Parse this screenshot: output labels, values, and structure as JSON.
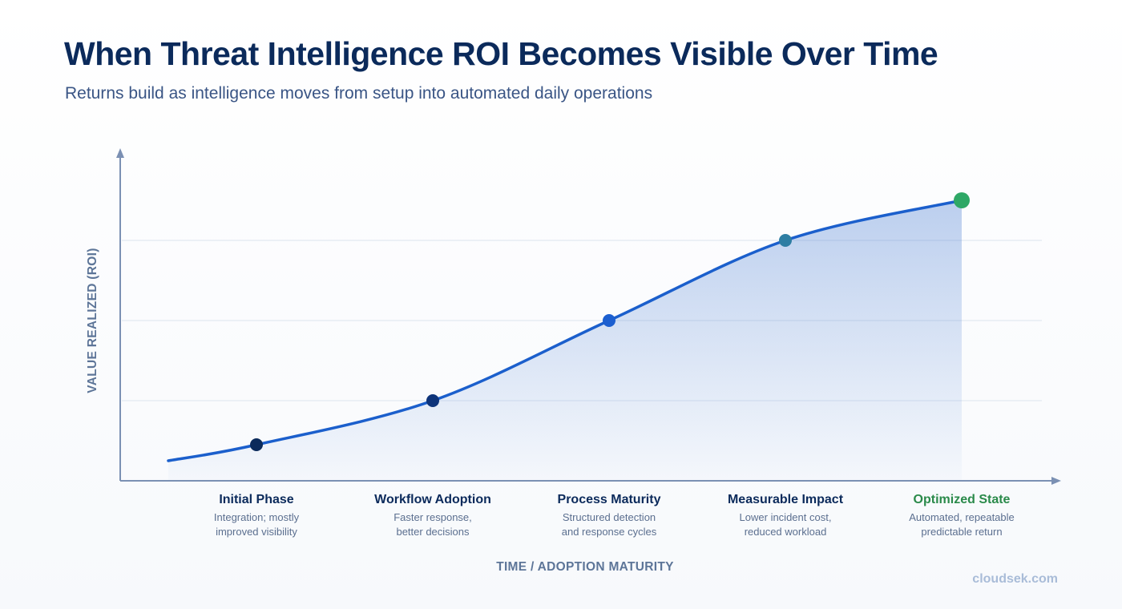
{
  "chart_data": {
    "type": "area",
    "title": "When Threat Intelligence ROI Becomes Visible Over Time",
    "subtitle": "Returns build as intelligence moves from setup into automated daily operations",
    "xlabel": "TIME / ADOPTION MATURITY",
    "ylabel": "VALUE REALIZED (ROI)",
    "grid": true,
    "categories": [
      "Initial Phase",
      "Workflow Adoption",
      "Process Maturity",
      "Measurable Impact",
      "Optimized State"
    ],
    "descriptions": [
      [
        "Integration; mostly",
        "improved visibility"
      ],
      [
        "Faster response,",
        "better decisions"
      ],
      [
        "Structured detection",
        "and response cycles"
      ],
      [
        "Lower incident cost,",
        "reduced workload"
      ],
      [
        "Automated, repeatable",
        "predictable return"
      ]
    ],
    "values": [
      0.45,
      1.0,
      2.0,
      3.0,
      3.5
    ],
    "start_value": 0.25,
    "ylim": [
      0,
      4
    ],
    "colors": {
      "line": "#1b5fcc",
      "area": "#2563c9",
      "axis": "#7b90b3",
      "grid": "#e3e9f2",
      "markers": [
        "#0b2a5b",
        "#0e347a",
        "#1c5fd0",
        "#2e7ea3",
        "#2ea866"
      ],
      "category_titles": [
        "#0b2a5b",
        "#0b2a5b",
        "#0b2a5b",
        "#0b2a5b",
        "#2a8a4a"
      ]
    }
  },
  "watermark": "cloudsek.com"
}
